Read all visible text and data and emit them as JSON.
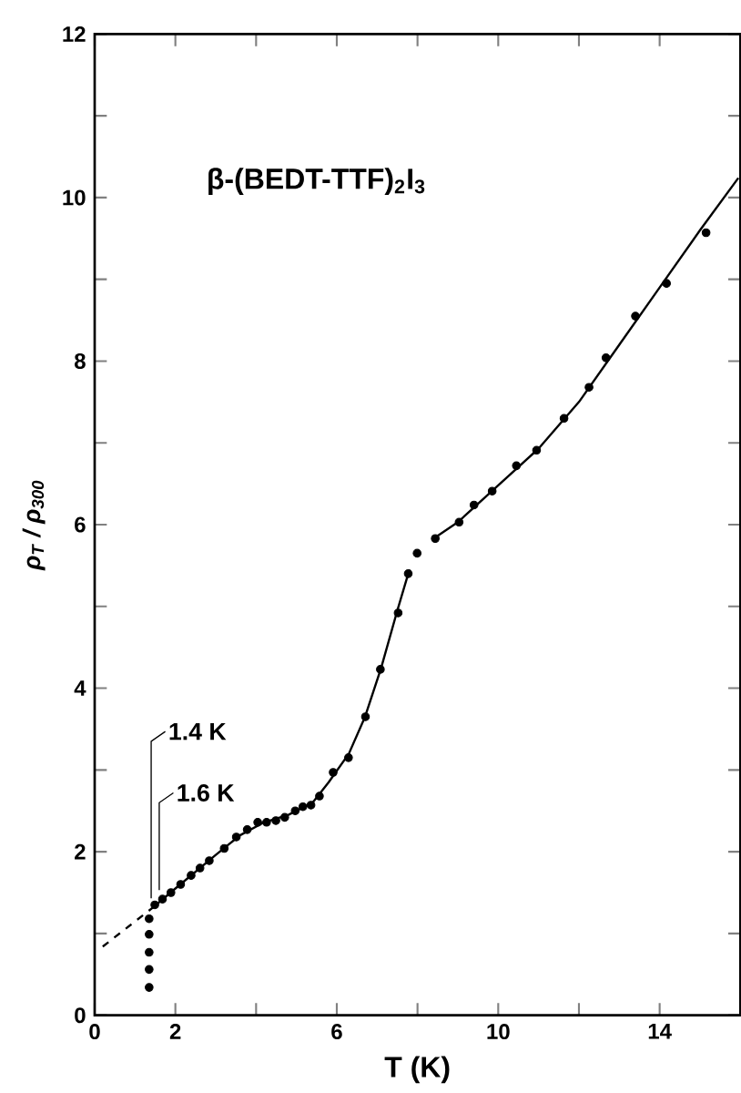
{
  "chart_data": {
    "type": "scatter",
    "title": "β-(BEDT-TTF)$_{2}$I$_{3}$",
    "xlabel": "T (K)",
    "ylabel": "ρ$_{T}$ / ρ$_{300}$",
    "xlim": [
      0,
      16
    ],
    "ylim": [
      0,
      12
    ],
    "xticks": [
      0,
      2,
      {
        "value": 4,
        "label": null
      },
      6,
      {
        "value": 8,
        "label": null
      },
      10,
      {
        "value": 12,
        "label": null
      },
      14
    ],
    "yticks": [
      0,
      {
        "value": 1,
        "label": null
      },
      2,
      {
        "value": 3,
        "label": null
      },
      4,
      {
        "value": 5,
        "label": null
      },
      6,
      {
        "value": 7,
        "label": null
      },
      8,
      {
        "value": 9,
        "label": null
      },
      10,
      {
        "value": 11,
        "label": null
      },
      12
    ],
    "grid": false,
    "series": [
      {
        "type": "line",
        "color": "#000000",
        "marker": "none",
        "line_style": "solid",
        "x": [
          1.45,
          2.0,
          3.0,
          3.6,
          4.2,
          4.8,
          5.4,
          5.8,
          6.3,
          6.7,
          7.1,
          7.5,
          7.8,
          null,
          8.4,
          9.0,
          10.0,
          11.0,
          12.0,
          13.0,
          14.0,
          15.0,
          15.95
        ],
        "values": [
          1.32,
          1.55,
          1.96,
          2.2,
          2.36,
          2.45,
          2.6,
          2.85,
          3.2,
          3.65,
          4.25,
          4.95,
          5.45,
          null,
          5.83,
          6.03,
          6.48,
          6.93,
          7.5,
          8.2,
          8.9,
          9.6,
          10.24
        ]
      },
      {
        "type": "line",
        "color": "#000000",
        "marker": "none",
        "line_style": "dashed",
        "x": [
          0.2,
          1.45
        ],
        "values": [
          0.84,
          1.32
        ]
      },
      {
        "color": "#000000",
        "marker": "circle",
        "x": [
          1.35,
          1.35,
          1.35,
          1.35,
          1.35,
          1.49,
          1.68,
          1.89,
          2.13,
          2.39,
          2.61,
          2.84,
          3.21,
          3.51,
          3.78,
          4.04,
          4.26,
          4.49,
          4.71,
          4.97,
          5.16,
          5.36,
          5.57,
          5.91,
          6.29,
          6.71,
          7.08,
          7.52,
          7.77,
          7.99,
          8.44,
          9.03,
          9.4,
          9.85,
          10.45,
          10.95,
          11.63,
          12.25,
          12.67,
          13.4,
          14.17,
          15.15
        ],
        "values": [
          0.34,
          0.56,
          0.77,
          0.99,
          1.18,
          1.35,
          1.42,
          1.5,
          1.6,
          1.71,
          1.8,
          1.89,
          2.04,
          2.18,
          2.27,
          2.36,
          2.36,
          2.38,
          2.42,
          2.5,
          2.55,
          2.57,
          2.68,
          2.97,
          3.15,
          3.65,
          4.23,
          4.92,
          5.4,
          5.65,
          5.83,
          6.03,
          6.24,
          6.41,
          6.72,
          6.91,
          7.3,
          7.68,
          8.04,
          8.55,
          8.95,
          9.57
        ]
      }
    ],
    "annotations": [
      {
        "text": "1.4 K",
        "x": 1.4,
        "y": 1.35
      },
      {
        "text": "1.6 K",
        "x": 1.6,
        "y": 1.45
      }
    ]
  }
}
